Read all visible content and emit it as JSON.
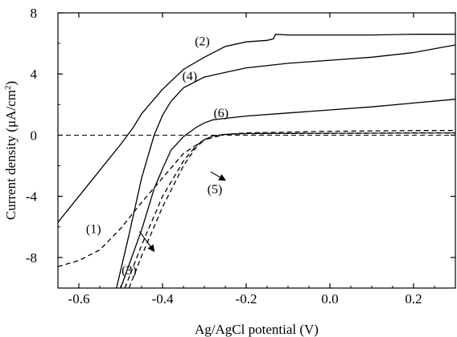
{
  "chart_data": {
    "type": "line",
    "title": "",
    "xlabel": "Ag/AgCl potential (V)",
    "ylabel_parts": {
      "pre": "Current density (",
      "mu": "μ",
      "mid": "A/cm",
      "sup": "2",
      "post": ")"
    },
    "xlim": [
      -0.65,
      0.3
    ],
    "ylim": [
      -10,
      8
    ],
    "xticks": [
      -0.6,
      -0.4,
      -0.2,
      0.0,
      0.2
    ],
    "xtick_labels": [
      "-0.6",
      "-0.4",
      "-0.2",
      "0.0",
      "0.2"
    ],
    "yticks": [
      -8,
      -4,
      0,
      4,
      8
    ],
    "ytick_labels": [
      "-8",
      "-4",
      "0",
      "4",
      "8"
    ],
    "grid": false,
    "legend": "none",
    "reference_line": {
      "y": 0,
      "style": "dashed"
    },
    "series": [
      {
        "label": "(1)",
        "style": "dashed",
        "x": [
          -0.65,
          -0.6,
          -0.55,
          -0.5,
          -0.45,
          -0.4,
          -0.35,
          -0.3,
          -0.25,
          -0.2,
          0.0,
          0.2,
          0.3
        ],
        "y": [
          -8.6,
          -8.2,
          -7.5,
          -6.1,
          -4.4,
          -2.8,
          -1.2,
          -0.3,
          0.05,
          0.15,
          0.25,
          0.3,
          0.3
        ]
      },
      {
        "label": "(2)",
        "style": "solid",
        "x": [
          -0.65,
          -0.6,
          -0.55,
          -0.5,
          -0.47,
          -0.45,
          -0.4,
          -0.35,
          -0.3,
          -0.25,
          -0.2,
          -0.15,
          -0.135,
          -0.13,
          -0.1,
          0.0,
          0.1,
          0.2,
          0.3
        ],
        "y": [
          -5.7,
          -4.0,
          -2.3,
          -0.6,
          0.5,
          1.4,
          3.0,
          4.3,
          5.1,
          5.8,
          6.1,
          6.2,
          6.3,
          6.6,
          6.55,
          6.55,
          6.55,
          6.6,
          6.6
        ]
      },
      {
        "label": "(3)",
        "style": "dashed",
        "x": [
          -0.49,
          -0.45,
          -0.4,
          -0.35,
          -0.32,
          -0.3,
          -0.28,
          -0.25,
          -0.2,
          0.0,
          0.2,
          0.3
        ],
        "y": [
          -10,
          -7.2,
          -4.0,
          -1.7,
          -0.7,
          -0.3,
          -0.05,
          0.05,
          0.1,
          0.12,
          0.15,
          0.15
        ]
      },
      {
        "label": "(4)",
        "style": "solid",
        "x": [
          -0.51,
          -0.48,
          -0.45,
          -0.42,
          -0.4,
          -0.38,
          -0.35,
          -0.3,
          -0.25,
          -0.2,
          -0.1,
          0.0,
          0.1,
          0.2,
          0.3
        ],
        "y": [
          -10,
          -6.5,
          -2.8,
          0.0,
          1.3,
          2.2,
          3.1,
          3.8,
          4.1,
          4.4,
          4.7,
          4.9,
          5.1,
          5.4,
          5.9
        ]
      },
      {
        "label": "(5)",
        "style": "dashed",
        "x": [
          -0.48,
          -0.45,
          -0.4,
          -0.35,
          -0.32,
          -0.3,
          -0.28,
          -0.25,
          -0.2,
          0.0,
          0.2,
          0.3
        ],
        "y": [
          -10,
          -7.9,
          -4.7,
          -2.0,
          -0.8,
          -0.3,
          -0.05,
          0.05,
          0.1,
          0.12,
          0.14,
          0.14
        ]
      },
      {
        "label": "(6)",
        "style": "solid",
        "x": [
          -0.5,
          -0.45,
          -0.42,
          -0.4,
          -0.38,
          -0.35,
          -0.32,
          -0.3,
          -0.28,
          -0.25,
          -0.2,
          -0.1,
          0.0,
          0.1,
          0.2,
          0.3
        ],
        "y": [
          -10,
          -6.2,
          -3.5,
          -2.2,
          -1.0,
          -0.1,
          0.5,
          0.8,
          1.0,
          1.1,
          1.25,
          1.45,
          1.65,
          1.85,
          2.1,
          2.35
        ]
      }
    ],
    "annotations": [
      {
        "text": "(1)",
        "x": -0.565,
        "y": -6.1
      },
      {
        "text": "(2)",
        "x": -0.305,
        "y": 6.2
      },
      {
        "text": "(3)",
        "x": -0.48,
        "y": -8.8
      },
      {
        "text": "(4)",
        "x": -0.335,
        "y": 3.9
      },
      {
        "text": "(5)",
        "x": -0.275,
        "y": -3.5
      },
      {
        "text": "(6)",
        "x": -0.26,
        "y": 1.5
      }
    ],
    "arrows": [
      {
        "from": [
          -0.285,
          -2.4
        ],
        "to": [
          -0.25,
          -2.95
        ]
      },
      {
        "from": [
          -0.455,
          -6.3
        ],
        "to": [
          -0.42,
          -7.6
        ]
      }
    ]
  }
}
